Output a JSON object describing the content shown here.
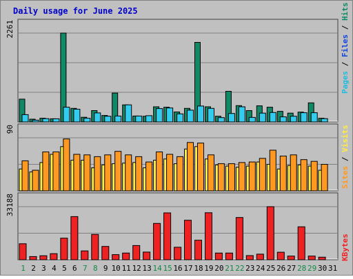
{
  "title": "Daily usage for June 2025",
  "colors": {
    "background": "#c0c0c0",
    "title": "#0000cc",
    "hits": "#118866",
    "files": "#33ccee",
    "pages": "#22bbdd",
    "visits": "#ffee44",
    "sites": "#ff9922",
    "kbytes": "#ee2222",
    "grid": "#808080",
    "weekend_label": "#118844",
    "weekday_label": "#000080"
  },
  "chart_data": [
    {
      "type": "bar",
      "id": "hits-files-pages",
      "ymax_label": "2261",
      "ylim": [
        0,
        2261
      ],
      "grid": true,
      "legend": [
        "Pages",
        "Files",
        "Hits"
      ],
      "categories": [
        "1",
        "2",
        "3",
        "4",
        "5",
        "6",
        "7",
        "8",
        "9",
        "10",
        "11",
        "12",
        "13",
        "14",
        "15",
        "16",
        "17",
        "18",
        "19",
        "20",
        "21",
        "22",
        "23",
        "24",
        "25",
        "26",
        "27",
        "28",
        "29",
        "30",
        "31"
      ],
      "series": [
        {
          "name": "Hits",
          "values": [
            580,
            70,
            95,
            80,
            2261,
            345,
            120,
            290,
            165,
            735,
            435,
            150,
            145,
            385,
            375,
            255,
            345,
            2025,
            385,
            145,
            780,
            415,
            290,
            410,
            375,
            270,
            225,
            250,
            485,
            95,
            0
          ]
        },
        {
          "name": "Files",
          "values": [
            185,
            45,
            85,
            80,
            375,
            325,
            95,
            230,
            145,
            150,
            435,
            150,
            160,
            340,
            355,
            205,
            300,
            405,
            345,
            110,
            215,
            385,
            115,
            225,
            240,
            130,
            145,
            235,
            235,
            85,
            0
          ]
        }
      ]
    },
    {
      "type": "bar",
      "id": "visits-sites",
      "ymax_label": "90",
      "ylim": [
        0,
        90
      ],
      "grid": true,
      "legend": [
        "Sites",
        "Visits"
      ],
      "categories": [
        "1",
        "2",
        "3",
        "4",
        "5",
        "6",
        "7",
        "8",
        "9",
        "10",
        "11",
        "12",
        "13",
        "14",
        "15",
        "16",
        "17",
        "18",
        "19",
        "20",
        "21",
        "22",
        "23",
        "24",
        "25",
        "26",
        "27",
        "28",
        "29",
        "30",
        "31"
      ],
      "series": [
        {
          "name": "Visits",
          "values": [
            37,
            32,
            48,
            62,
            75,
            52,
            52,
            39,
            44,
            46,
            47,
            48,
            39,
            52,
            54,
            46,
            71,
            75,
            54,
            44,
            42,
            40,
            42,
            49,
            45,
            37,
            43,
            44,
            42,
            35,
            0
          ]
        },
        {
          "name": "Sites",
          "values": [
            51,
            35,
            66,
            66,
            88,
            62,
            61,
            58,
            61,
            67,
            61,
            58,
            49,
            66,
            62,
            58,
            82,
            81,
            61,
            46,
            46,
            48,
            49,
            55,
            69,
            59,
            61,
            53,
            50,
            45,
            0
          ]
        }
      ]
    },
    {
      "type": "bar",
      "id": "kbytes",
      "ymax_label": "33188",
      "ylim": [
        0,
        33188
      ],
      "grid": true,
      "legend": [
        "KBytes"
      ],
      "categories": [
        "1",
        "2",
        "3",
        "4",
        "5",
        "6",
        "7",
        "8",
        "9",
        "10",
        "11",
        "12",
        "13",
        "14",
        "15",
        "16",
        "17",
        "18",
        "19",
        "20",
        "21",
        "22",
        "23",
        "24",
        "25",
        "26",
        "27",
        "28",
        "29",
        "30",
        "31"
      ],
      "series": [
        {
          "name": "KBytes",
          "values": [
            10000,
            2000,
            2500,
            3800,
            13500,
            27000,
            5500,
            15800,
            8300,
            3200,
            4200,
            8900,
            4800,
            22700,
            29300,
            7800,
            24700,
            12200,
            29400,
            4200,
            4200,
            26400,
            2600,
            3500,
            33188,
            4700,
            2300,
            20600,
            2300,
            1600,
            0
          ]
        }
      ]
    }
  ],
  "days": [
    "1",
    "2",
    "3",
    "4",
    "5",
    "6",
    "7",
    "8",
    "9",
    "10",
    "11",
    "12",
    "13",
    "14",
    "15",
    "16",
    "17",
    "18",
    "19",
    "20",
    "21",
    "22",
    "23",
    "24",
    "25",
    "26",
    "27",
    "28",
    "29",
    "30",
    "31"
  ],
  "weekend_days": [
    "1",
    "7",
    "8",
    "14",
    "15",
    "21",
    "22",
    "28",
    "29"
  ]
}
